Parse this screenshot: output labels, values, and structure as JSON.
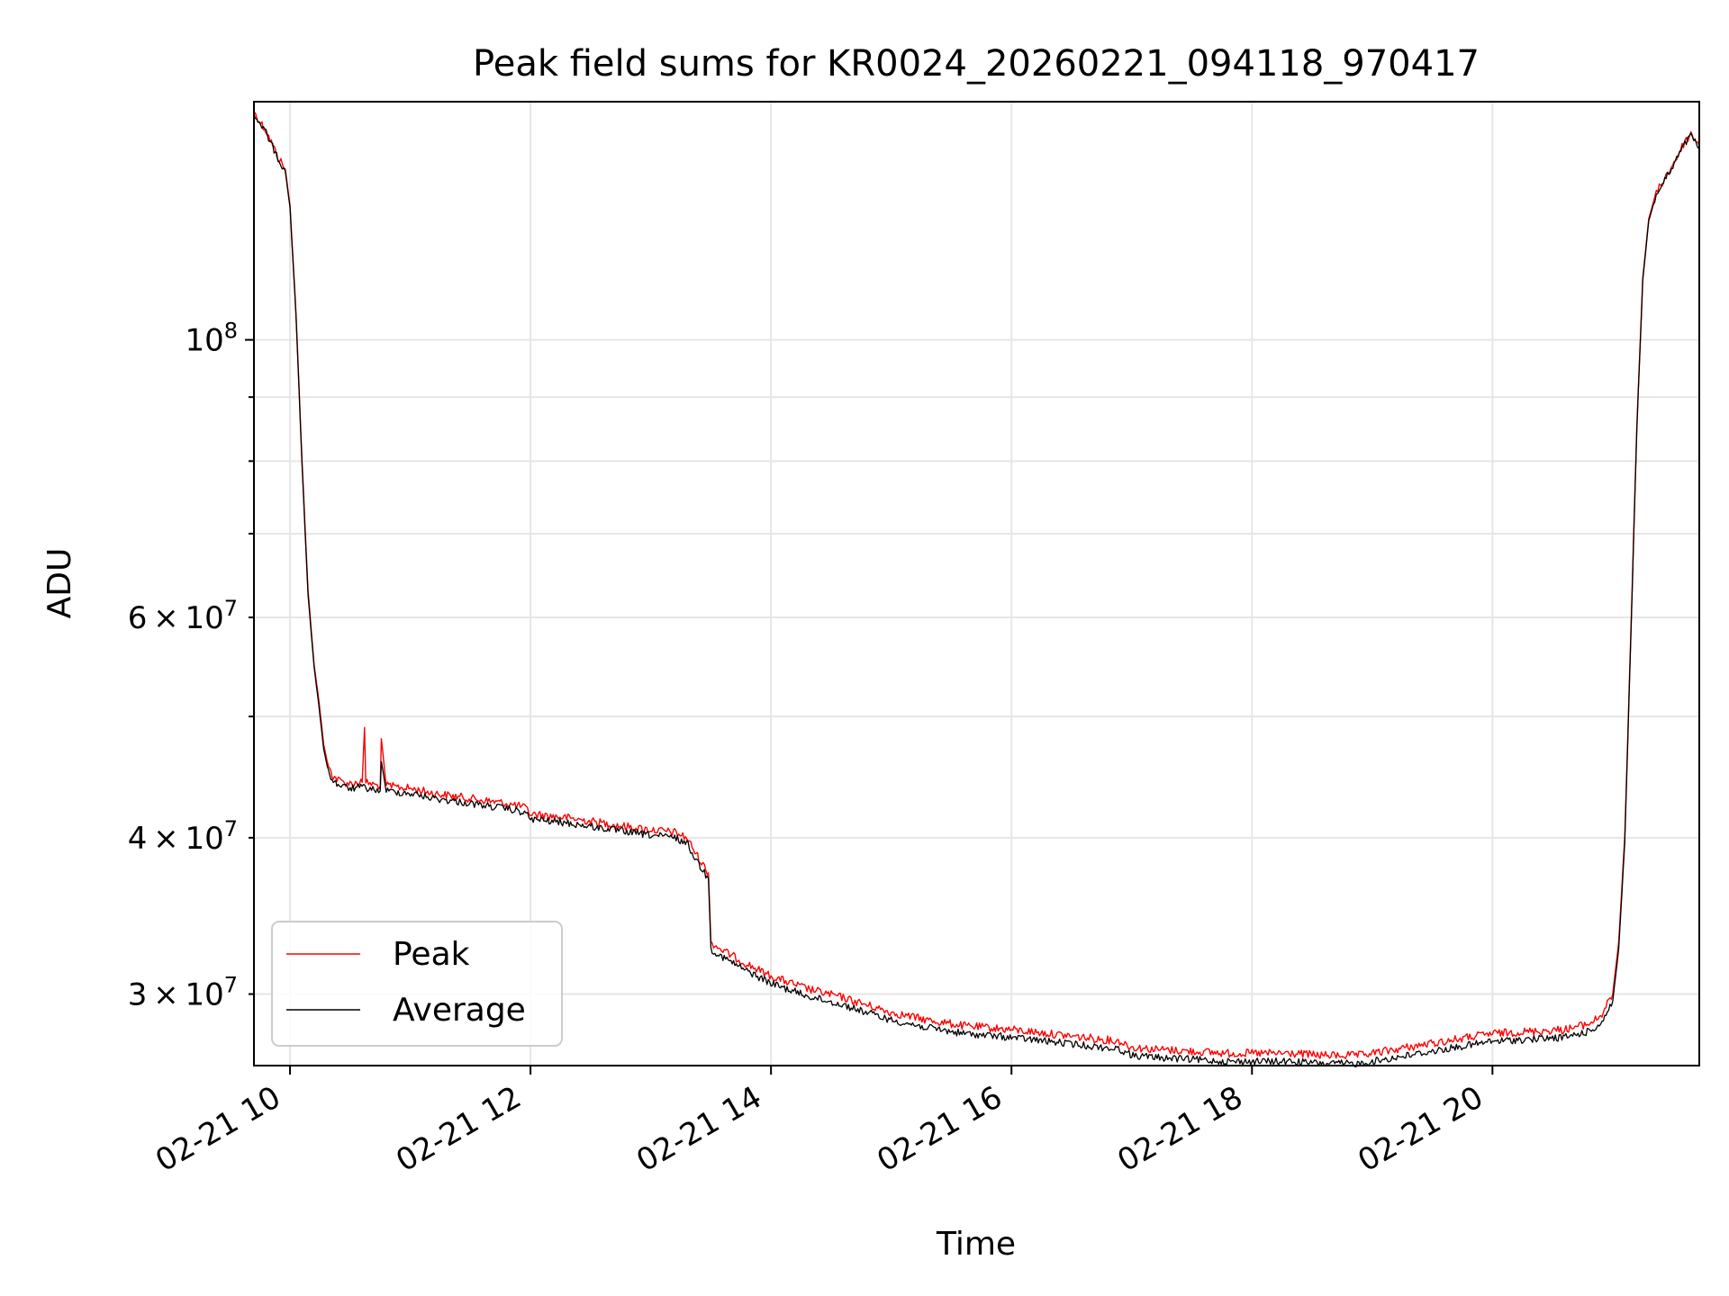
{
  "chart_data": {
    "type": "line",
    "title": "Peak field sums for KR0024_20260221_094118_970417",
    "xlabel": "Time",
    "ylabel": "ADU",
    "y_scale": "log",
    "ylim": [
      26300000,
      155000000
    ],
    "xlim_hours": [
      9.7,
      21.72
    ],
    "x_ticks": [
      {
        "hour": 10,
        "label": "02-21 10"
      },
      {
        "hour": 12,
        "label": "02-21 12"
      },
      {
        "hour": 14,
        "label": "02-21 14"
      },
      {
        "hour": 16,
        "label": "02-21 16"
      },
      {
        "hour": 18,
        "label": "02-21 18"
      },
      {
        "hour": 20,
        "label": "02-21 20"
      }
    ],
    "y_major_ticks": [
      {
        "value": 100000000,
        "mant": "10",
        "exp": "8"
      }
    ],
    "y_minor_ticks": [
      {
        "value": 30000000,
        "mant": "3",
        "exp": "7"
      },
      {
        "value": 40000000,
        "mant": "4",
        "exp": "7"
      },
      {
        "value": 50000000,
        "mant": "",
        "exp": ""
      },
      {
        "value": 60000000,
        "mant": "6",
        "exp": "7"
      },
      {
        "value": 70000000,
        "mant": "",
        "exp": ""
      },
      {
        "value": 80000000,
        "mant": "",
        "exp": ""
      },
      {
        "value": 90000000,
        "mant": "",
        "exp": ""
      }
    ],
    "times_symbol": "×",
    "grid": true,
    "legend_position": "lower-left",
    "series": [
      {
        "name": "Peak",
        "color": "#ff0000",
        "x_hours": [
          9.7,
          9.8,
          9.9,
          9.96,
          10.0,
          10.05,
          10.1,
          10.15,
          10.2,
          10.24,
          10.28,
          10.32,
          10.36,
          10.4,
          10.45,
          10.5,
          10.6,
          10.62,
          10.63,
          10.7,
          10.75,
          10.76,
          10.8,
          11.0,
          11.2,
          11.5,
          11.8,
          11.95,
          12.0,
          12.3,
          12.6,
          12.9,
          13.2,
          13.3,
          13.4,
          13.48,
          13.5,
          13.6,
          13.8,
          14.0,
          14.3,
          14.6,
          15.0,
          15.3,
          15.6,
          16.0,
          16.3,
          16.6,
          16.9,
          17.0,
          17.2,
          17.5,
          17.8,
          18.0,
          18.3,
          18.6,
          18.9,
          19.0,
          19.3,
          19.6,
          19.9,
          20.0,
          20.3,
          20.6,
          20.8,
          20.9,
          21.0,
          21.05,
          21.1,
          21.15,
          21.2,
          21.25,
          21.3,
          21.35,
          21.4,
          21.5,
          21.6,
          21.65,
          21.72
        ],
        "values": [
          152000000,
          147000000,
          140000000,
          137000000,
          128000000,
          105000000,
          80000000,
          63000000,
          55000000,
          51500000,
          47500000,
          45500000,
          44800000,
          44500000,
          44300000,
          44200000,
          44300000,
          49000000,
          44300000,
          44100000,
          44000000,
          48000000,
          44000000,
          43800000,
          43400000,
          43000000,
          42600000,
          42300000,
          41800000,
          41500000,
          41100000,
          40700000,
          40400000,
          40000000,
          38500000,
          37500000,
          33000000,
          32500000,
          31700000,
          31000000,
          30300000,
          29800000,
          29000000,
          28600000,
          28300000,
          28100000,
          27900000,
          27700000,
          27500000,
          27200000,
          27100000,
          27000000,
          26900000,
          26900000,
          26900000,
          26800000,
          26800000,
          26900000,
          27200000,
          27500000,
          27800000,
          27900000,
          28000000,
          28100000,
          28400000,
          28800000,
          30000000,
          33000000,
          40000000,
          58000000,
          85000000,
          112000000,
          125000000,
          130000000,
          133000000,
          138000000,
          144000000,
          146000000,
          143000000
        ]
      },
      {
        "name": "Average",
        "color": "#000000",
        "x_hours": [
          9.7,
          9.8,
          9.9,
          9.96,
          10.0,
          10.05,
          10.1,
          10.15,
          10.2,
          10.24,
          10.28,
          10.32,
          10.36,
          10.4,
          10.45,
          10.5,
          10.6,
          10.7,
          10.75,
          10.76,
          10.8,
          11.0,
          11.2,
          11.5,
          11.8,
          11.95,
          12.0,
          12.3,
          12.6,
          12.9,
          13.2,
          13.3,
          13.4,
          13.48,
          13.5,
          13.6,
          13.8,
          14.0,
          14.3,
          14.6,
          15.0,
          15.3,
          15.6,
          16.0,
          16.3,
          16.6,
          16.9,
          17.0,
          17.2,
          17.5,
          17.8,
          18.0,
          18.3,
          18.6,
          18.9,
          19.0,
          19.3,
          19.6,
          19.9,
          20.0,
          20.3,
          20.6,
          20.8,
          20.9,
          21.0,
          21.05,
          21.1,
          21.15,
          21.2,
          21.25,
          21.3,
          21.35,
          21.4,
          21.5,
          21.6,
          21.65,
          21.72
        ],
        "values": [
          151500000,
          146500000,
          139500000,
          136500000,
          127500000,
          104500000,
          79500000,
          62500000,
          54800000,
          51000000,
          47100000,
          45100000,
          44400000,
          44100000,
          43900000,
          43800000,
          43900000,
          43700000,
          43600000,
          46000000,
          43600000,
          43400000,
          43000000,
          42600000,
          42200000,
          41900000,
          41400000,
          41100000,
          40700000,
          40300000,
          40000000,
          39600000,
          38100000,
          37100000,
          32600000,
          32100000,
          31300000,
          30600000,
          29900000,
          29400000,
          28600000,
          28200000,
          27900000,
          27700000,
          27500000,
          27300000,
          27100000,
          26800000,
          26700000,
          26600000,
          26500000,
          26500000,
          26500000,
          26400000,
          26400000,
          26500000,
          26800000,
          27100000,
          27400000,
          27500000,
          27600000,
          27700000,
          28000000,
          28400000,
          29600000,
          32600000,
          39600000,
          57500000,
          84500000,
          111500000,
          124500000,
          129500000,
          132500000,
          137500000,
          143500000,
          145500000,
          142500000
        ]
      }
    ]
  }
}
